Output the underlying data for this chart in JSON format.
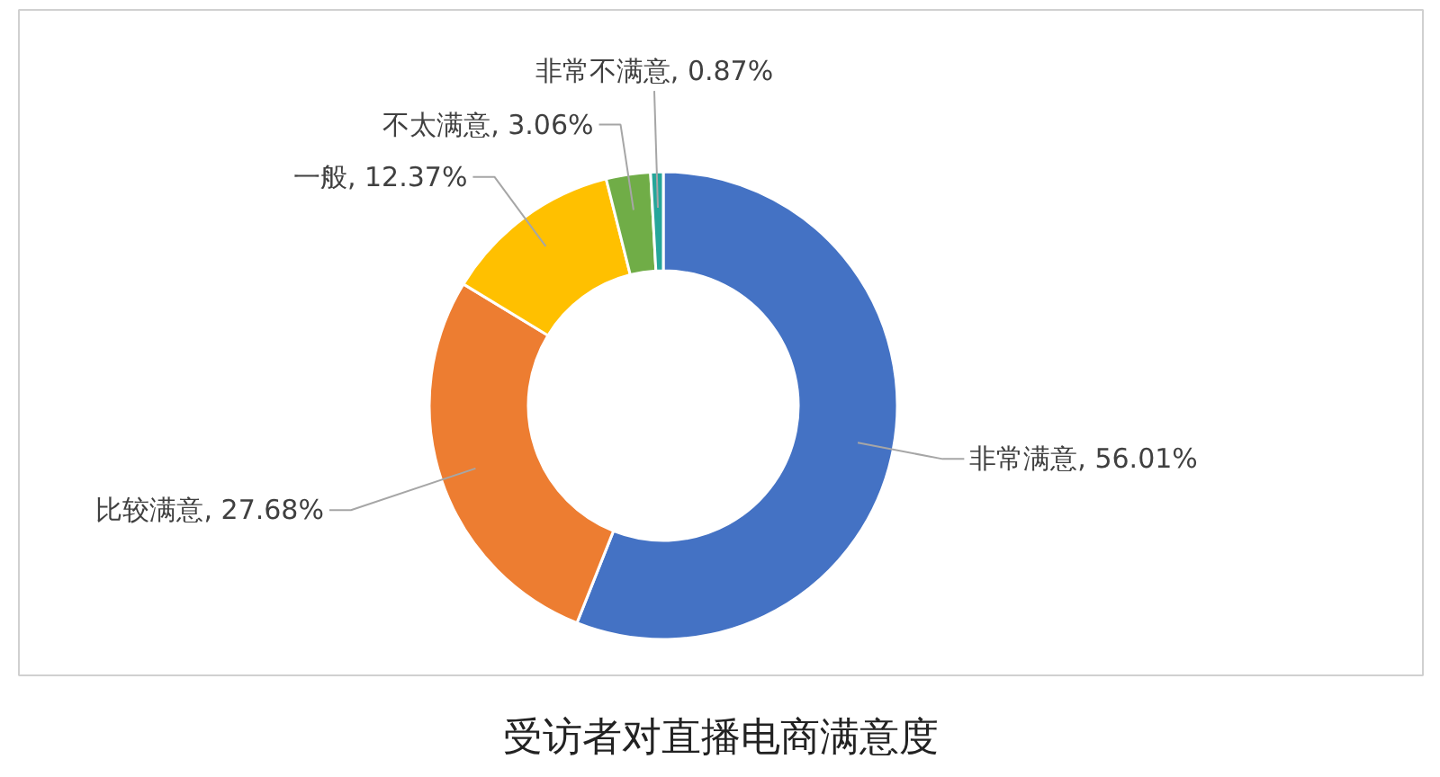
{
  "chart_data": {
    "type": "donut",
    "title": "受访者对直播电商满意度",
    "categories": [
      "非常满意",
      "比较满意",
      "一般",
      "不太满意",
      "非常不满意"
    ],
    "values": [
      56.01,
      27.68,
      12.37,
      3.06,
      0.87
    ],
    "value_labels": [
      "56.01%",
      "27.68%",
      "12.37%",
      "3.06%",
      "0.87%"
    ],
    "colors": [
      "#4472c4",
      "#ed7d31",
      "#ffc000",
      "#70ad47",
      "#26a69a"
    ]
  }
}
